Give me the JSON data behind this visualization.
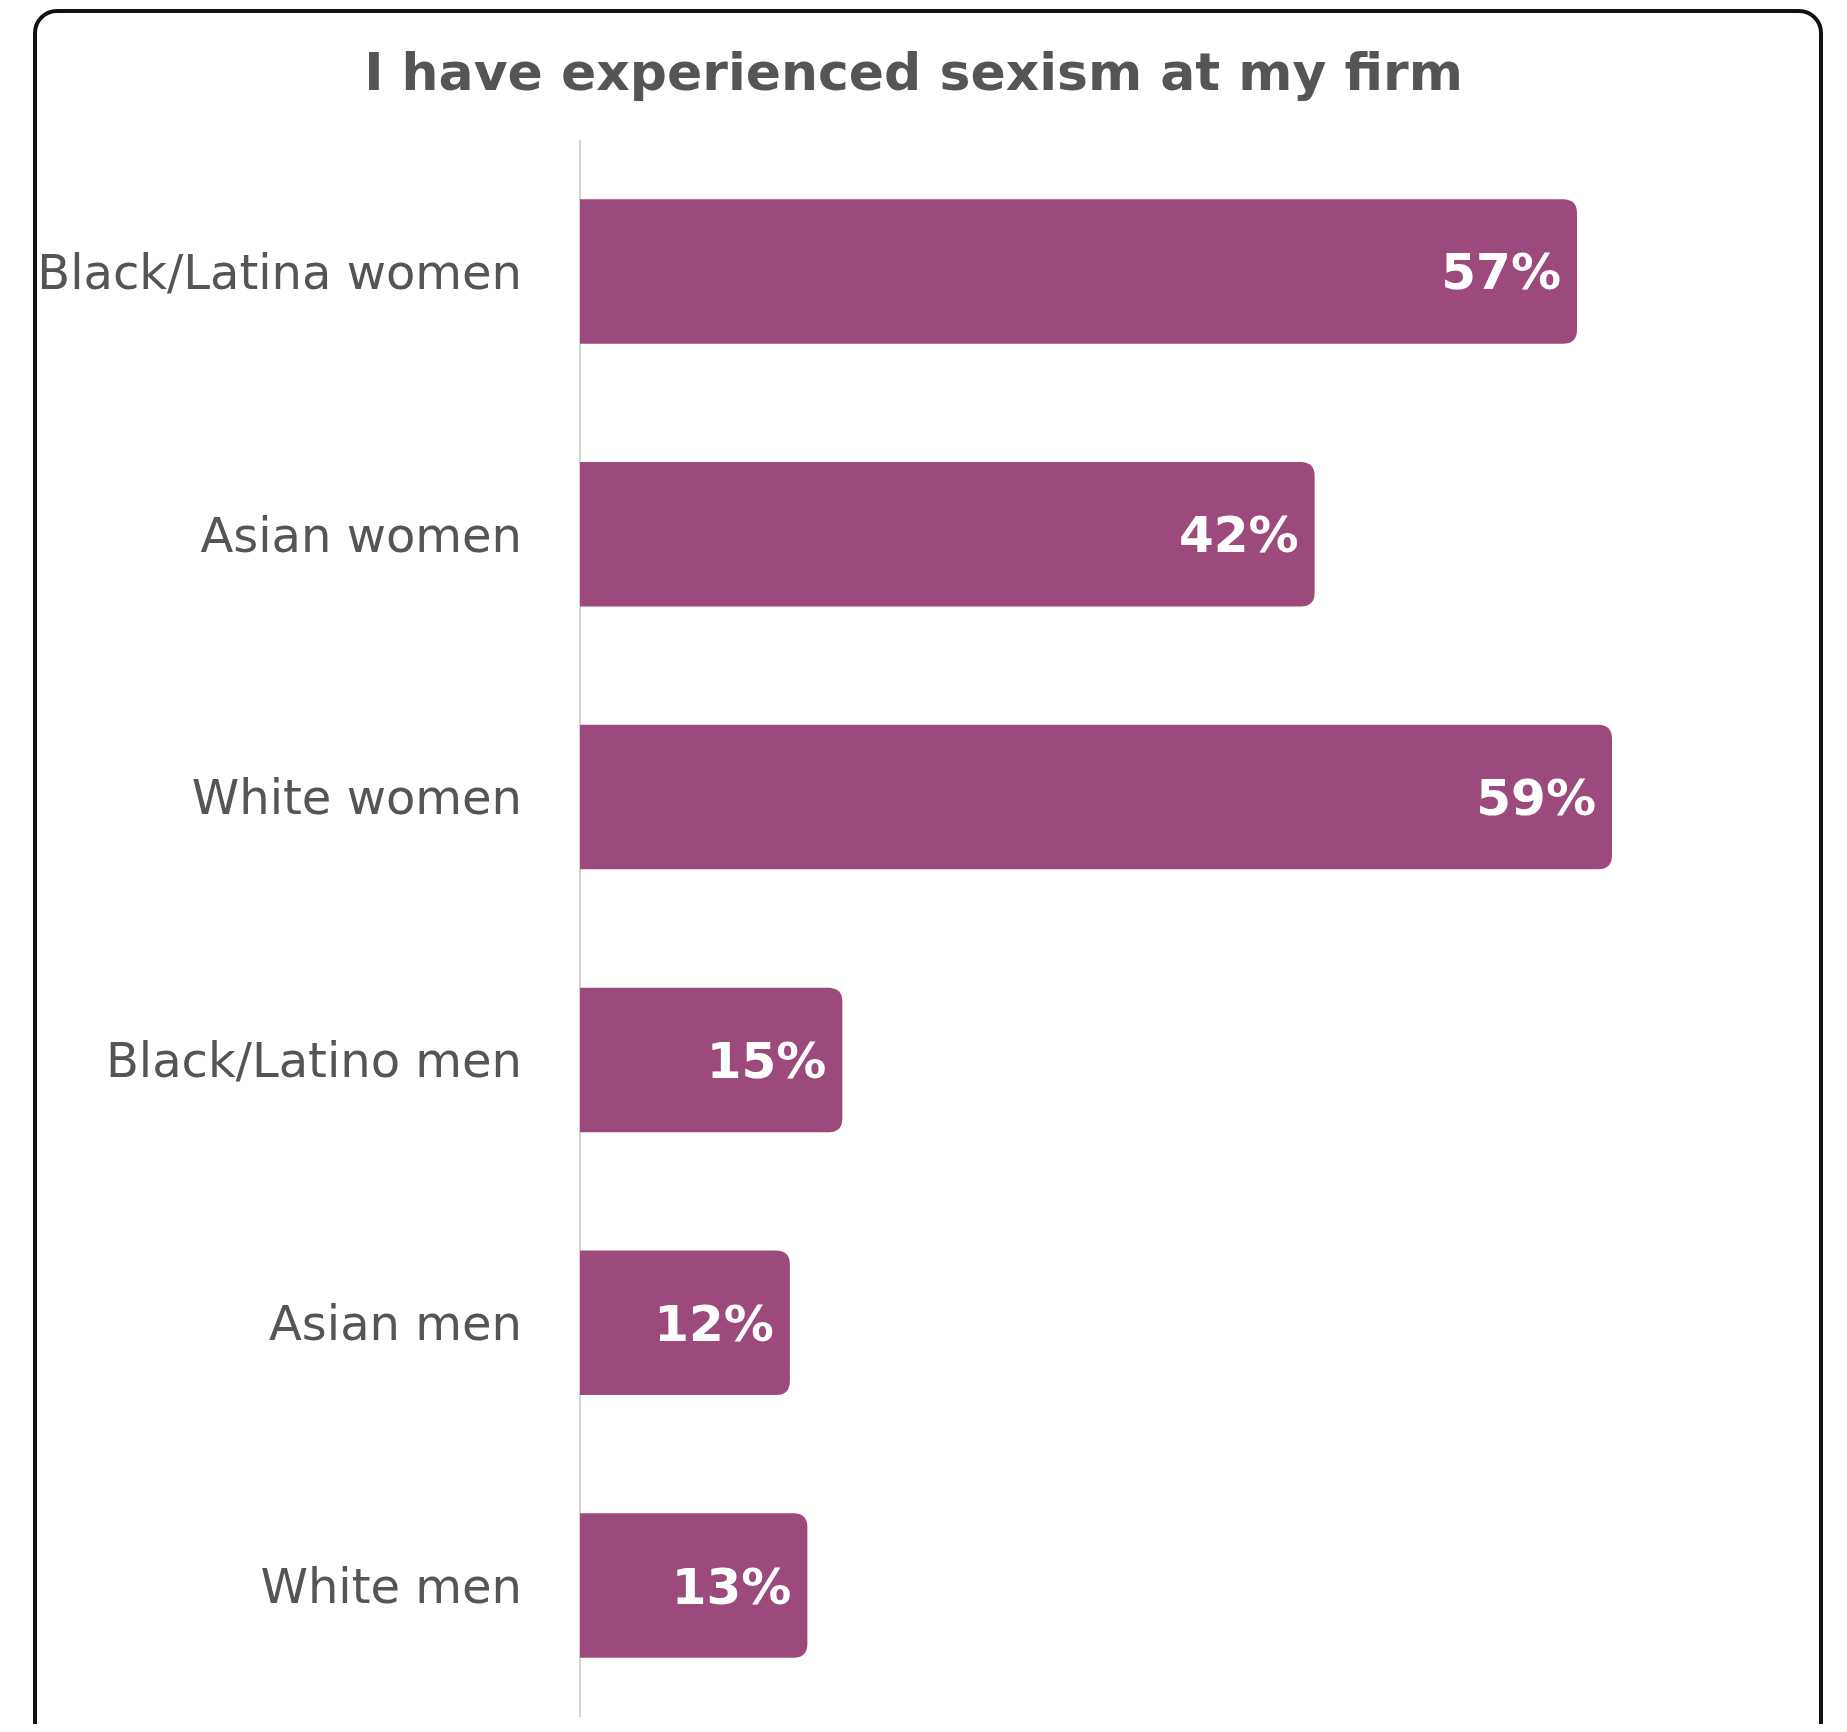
{
  "chart_data": {
    "type": "bar",
    "orientation": "horizontal",
    "title": "I have experienced sexism at my firm",
    "categories": [
      "Black/Latina women",
      "Asian women",
      "White women",
      "Black/Latino men",
      "Asian men",
      "White men"
    ],
    "values": [
      57,
      42,
      59,
      15,
      12,
      13
    ],
    "value_labels": [
      "57%",
      "42%",
      "59%",
      "15%",
      "12%",
      "13%"
    ],
    "color": "#9b4a7b"
  }
}
